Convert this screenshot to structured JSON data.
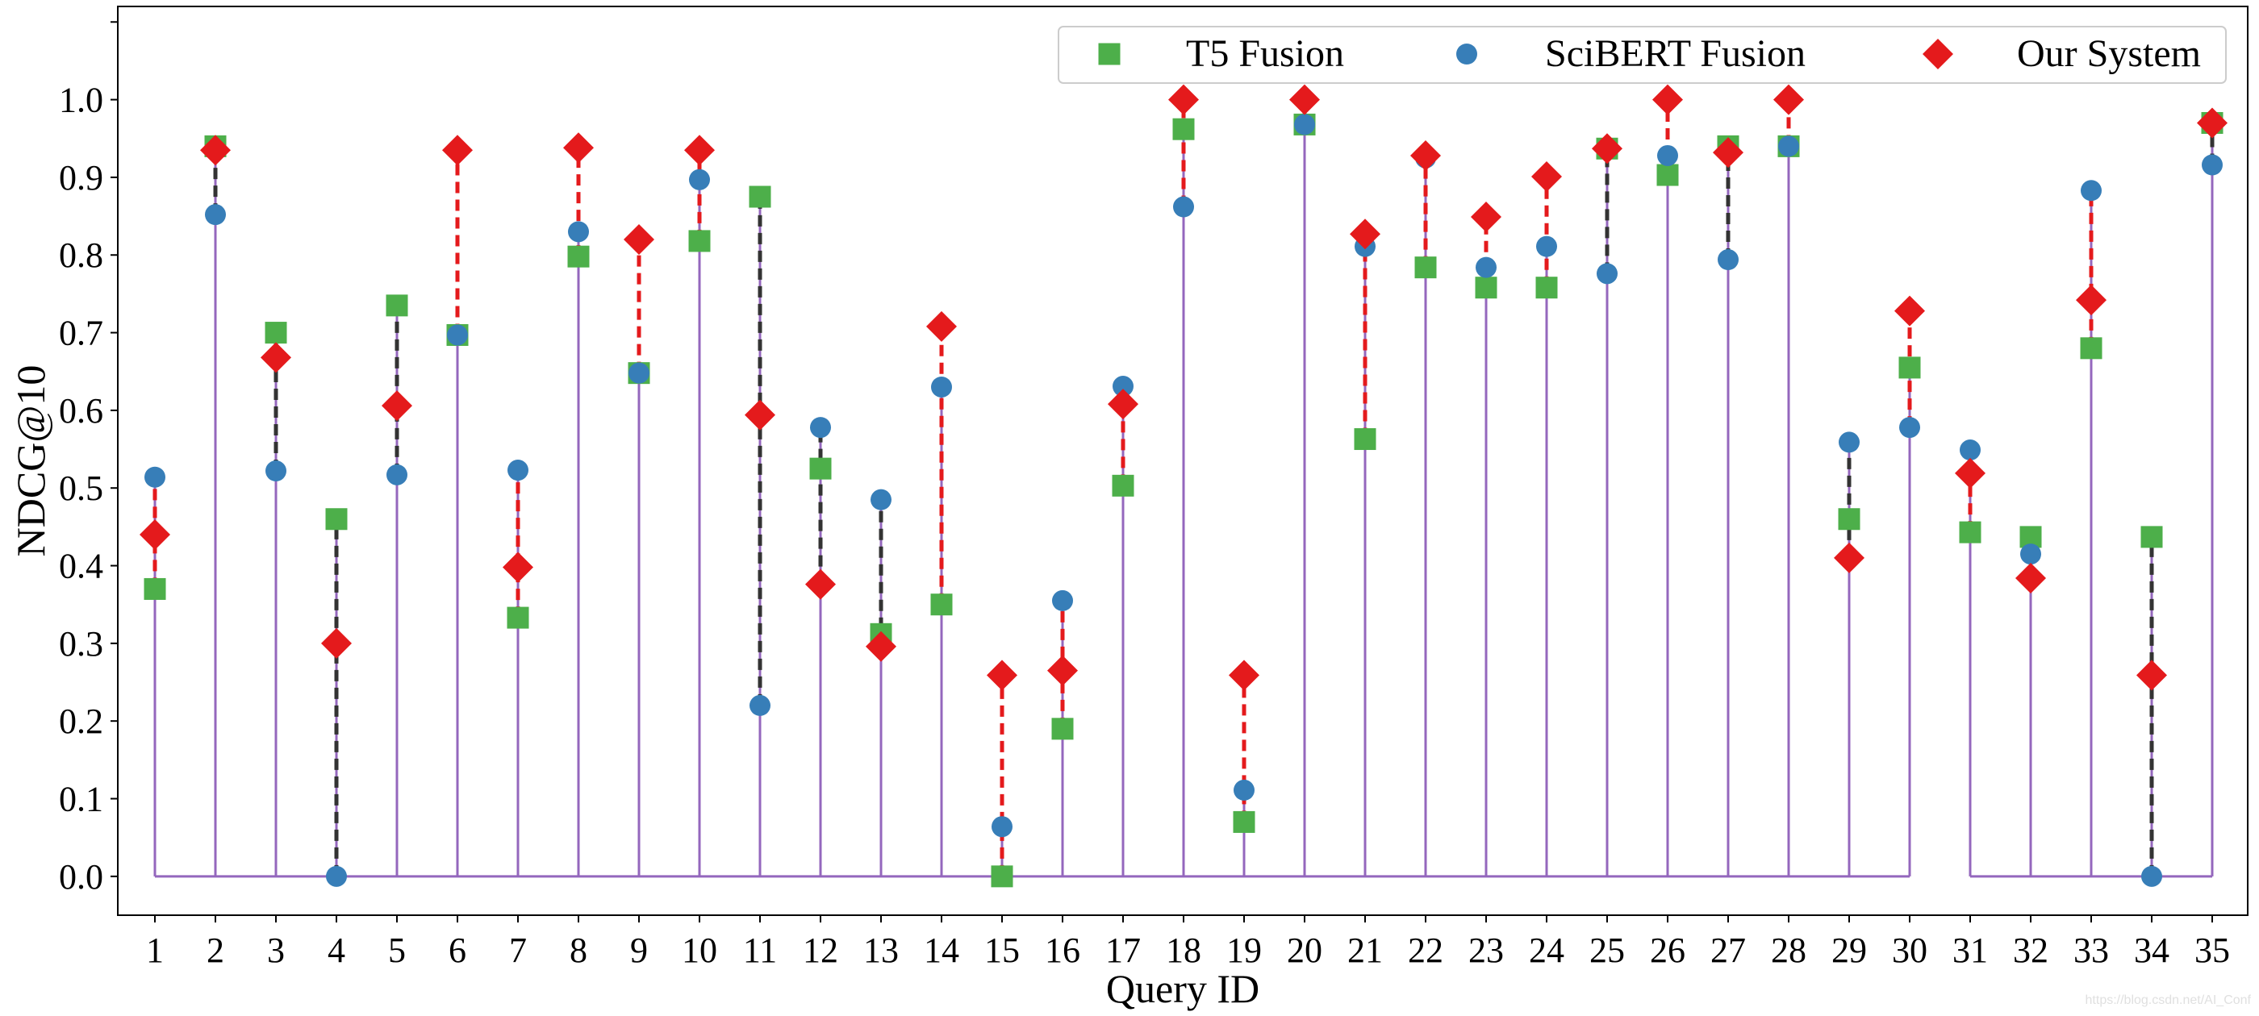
{
  "chart_data": {
    "type": "scatter",
    "xlabel": "Query ID",
    "ylabel": "NDCG@10",
    "ylim": [
      -0.05,
      1.12
    ],
    "y_ticks": [
      "0.0",
      "0.1",
      "0.2",
      "0.3",
      "0.4",
      "0.5",
      "0.6",
      "0.7",
      "0.8",
      "0.9",
      "1.0"
    ],
    "categories": [
      "1",
      "2",
      "3",
      "4",
      "5",
      "6",
      "7",
      "8",
      "9",
      "10",
      "11",
      "12",
      "13",
      "14",
      "15",
      "16",
      "17",
      "18",
      "19",
      "20",
      "21",
      "22",
      "23",
      "24",
      "25",
      "26",
      "27",
      "28",
      "29",
      "30",
      "31",
      "32",
      "33",
      "34",
      "35"
    ],
    "series": [
      {
        "name": "T5 Fusion",
        "marker": "square",
        "color": "#4daf4a",
        "values": [
          0.37,
          0.94,
          0.7,
          0.46,
          0.735,
          0.697,
          0.333,
          0.798,
          0.648,
          0.818,
          0.875,
          0.525,
          0.312,
          0.35,
          0.0,
          0.19,
          0.503,
          0.962,
          0.07,
          0.968,
          0.563,
          0.784,
          0.758,
          0.758,
          0.937,
          0.903,
          0.94,
          0.94,
          0.46,
          0.655,
          0.443,
          0.437,
          0.68,
          0.437,
          0.97
        ]
      },
      {
        "name": "SciBERT Fusion",
        "marker": "circle",
        "color": "#377eb8",
        "values": [
          0.514,
          0.852,
          0.522,
          0.0,
          0.517,
          0.697,
          0.523,
          0.83,
          0.648,
          0.897,
          0.22,
          0.578,
          0.485,
          0.63,
          0.064,
          0.355,
          0.631,
          0.862,
          0.111,
          0.968,
          0.811,
          0.925,
          0.784,
          0.811,
          0.776,
          0.928,
          0.794,
          0.94,
          0.559,
          0.578,
          0.549,
          0.415,
          0.883,
          0.0,
          0.916
        ]
      },
      {
        "name": "Our System",
        "marker": "diamond",
        "color": "#e41a1c",
        "values": [
          0.44,
          0.935,
          0.668,
          0.3,
          0.606,
          0.935,
          0.398,
          0.938,
          0.82,
          0.935,
          0.594,
          0.376,
          0.296,
          0.708,
          0.259,
          0.265,
          0.608,
          1.0,
          0.259,
          1.0,
          0.827,
          0.928,
          0.849,
          0.901,
          0.937,
          1.0,
          0.932,
          1.0,
          0.41,
          0.728,
          0.519,
          0.384,
          0.742,
          0.259,
          0.97
        ]
      }
    ],
    "legend_position": "top-right",
    "grid": false,
    "stem_color": "#9467bd",
    "highlight_color": "#e41a1c",
    "connector_color": "#333333"
  },
  "watermark": "https://blog.csdn.net/AI_Conf"
}
